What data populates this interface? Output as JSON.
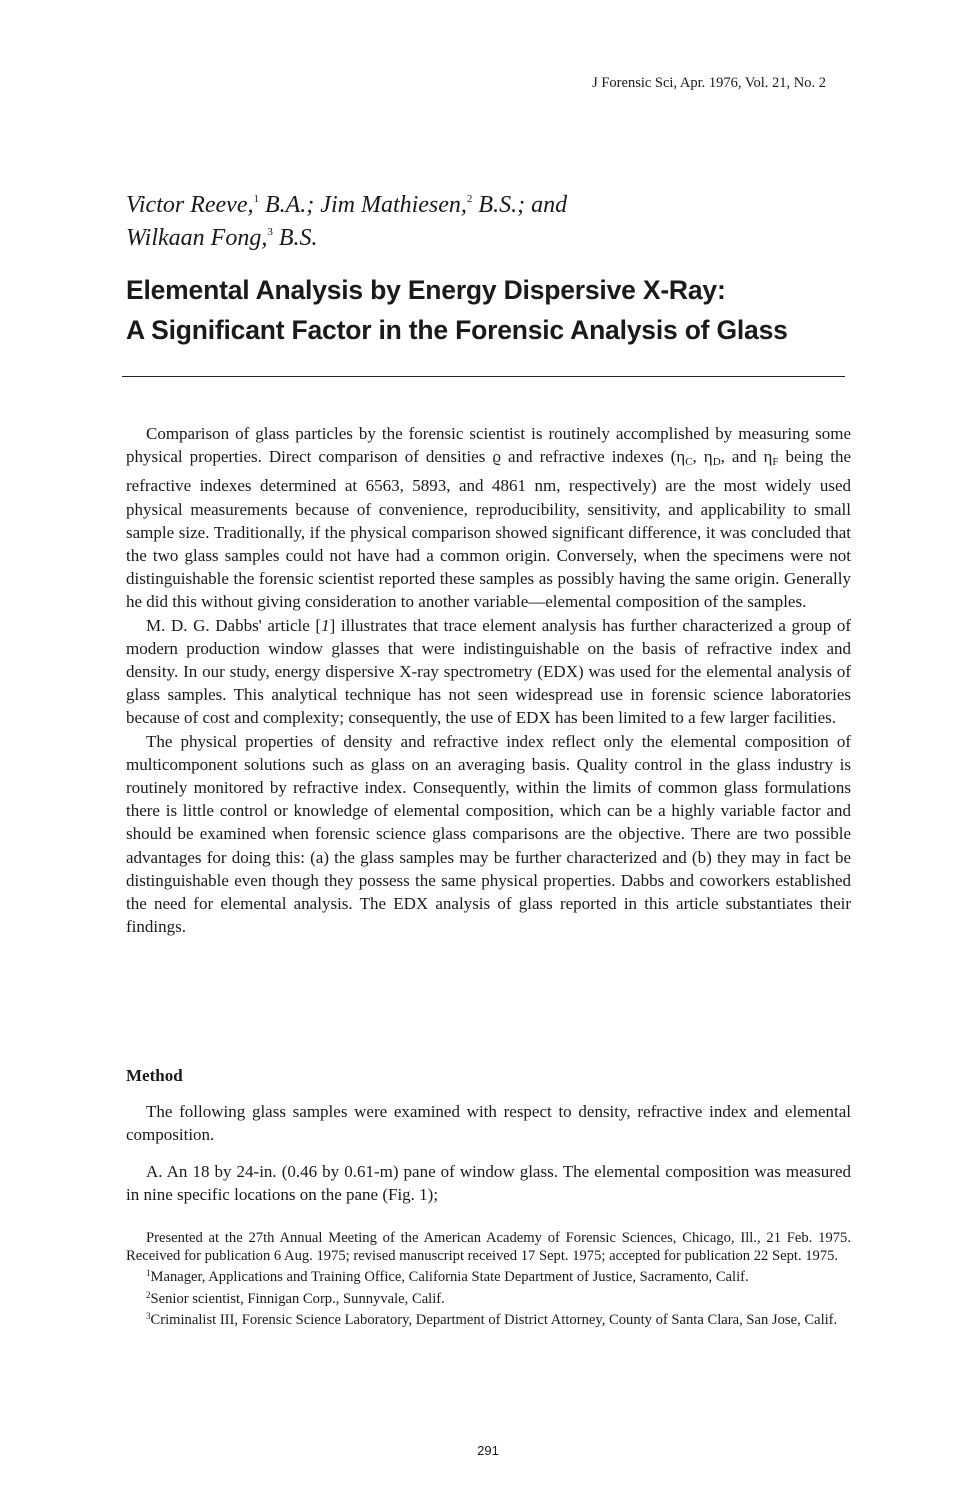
{
  "running_head": "J Forensic Sci, Apr. 1976, Vol. 21, No. 2",
  "authors": {
    "a1_name": "Victor Reeve,",
    "a1_sup": "1",
    "a1_deg": " B.A.; Jim Mathiesen,",
    "a2_sup": "2",
    "a2_deg": " B.S.; and",
    "a3_name": "Wilkaan Fong,",
    "a3_sup": "3",
    "a3_deg": " B.S."
  },
  "title": {
    "line1": "Elemental Analysis by Energy Dispersive X-Ray:",
    "line2": "A Significant Factor in the Forensic Analysis of Glass"
  },
  "intro": {
    "p1_a": "Comparison of glass particles by the forensic scientist is routinely accomplished by measuring some physical properties. Direct comparison of densities ",
    "rho": "ϱ",
    "p1_b": " and refractive indexes (",
    "eta": "η",
    "sub_c": "C",
    "sep1": ", ",
    "sub_d": "D",
    "sep2": ", and ",
    "sub_f": "F",
    "p1_c": " being the refractive indexes determined at 6563, 5893, and 4861 nm, respectively) are the most widely used physical measurements because of convenience, reproducibility, sensitivity, and applicability to small sample size. Traditionally, if the physical comparison showed significant difference, it was concluded that the two glass samples could not have had a common origin. Conversely, when the specimens were not distinguishable the forensic scientist reported these samples as possibly having the same origin. Generally he did this without giving consideration to another variable—elemental composition of the samples.",
    "p2_a": "M. D. G. Dabbs' article [",
    "p2_ref": "1",
    "p2_b": "] illustrates that trace element analysis has further characterized a group of modern production window glasses that were indistinguishable on the basis of refractive index and density. In our study, energy dispersive X-ray spectrometry (EDX) was used for the elemental analysis of glass samples. This analytical technique has not seen widespread use in forensic science laboratories because of cost and complexity; consequently, the use of EDX has been limited to a few larger facilities.",
    "p3": "The physical properties of density and refractive index reflect only the elemental composition of multicomponent solutions such as glass on an averaging basis. Quality control in the glass industry is routinely monitored by refractive index. Consequently, within the limits of common glass formulations there is little control or knowledge of elemental composition, which can be a highly variable factor and should be examined when forensic science glass comparisons are the objective. There are two possible advantages for doing this: (a) the glass samples may be further characterized and (b) they may in fact be distinguishable even though they possess the same physical properties. Dabbs and coworkers established the need for elemental analysis. The EDX analysis of glass reported in this article substantiates their findings."
  },
  "method": {
    "heading": "Method",
    "p1": "The following glass samples were examined with respect to density, refractive index and elemental composition.",
    "p2": "A. An 18 by 24-in. (0.46 by 0.61-m) pane of window glass. The elemental composition was measured in nine specific locations on the pane (Fig. 1);"
  },
  "footnotes": {
    "presented": "Presented at the 27th Annual Meeting of the American Academy of Forensic Sciences, Chicago, Ill., 21 Feb. 1975. Received for publication 6 Aug. 1975; revised manuscript received 17 Sept. 1975; accepted for publication 22 Sept. 1975.",
    "f1_mark": "1",
    "f1": "Manager, Applications and Training Office, California State Department of Justice, Sacramento, Calif.",
    "f2_mark": "2",
    "f2": "Senior scientist, Finnigan Corp., Sunnyvale, Calif.",
    "f3_mark": "3",
    "f3": "Criminalist III, Forensic Science Laboratory, Department of District Attorney, County of Santa Clara, San Jose, Calif."
  },
  "page_number": "291"
}
